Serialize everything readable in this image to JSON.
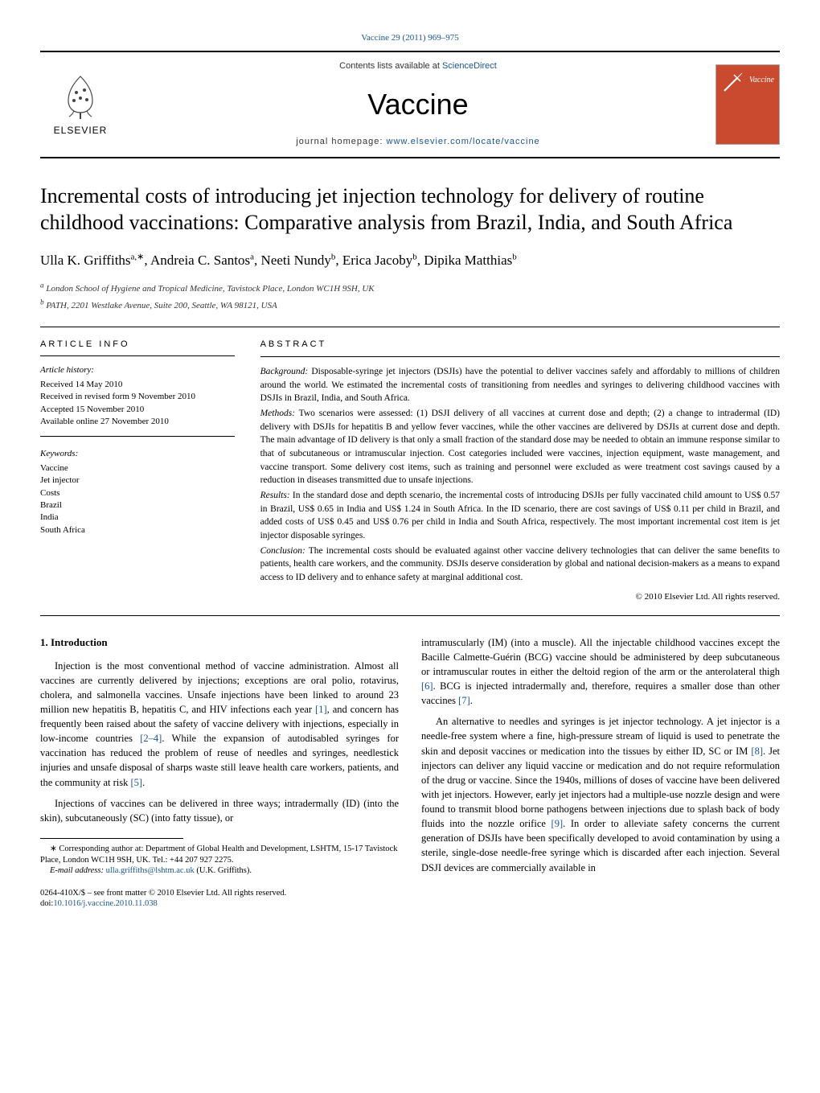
{
  "running_header": {
    "journal_link_text": "Vaccine 29 (2011) 969–975"
  },
  "masthead": {
    "elsevier_label": "ELSEVIER",
    "contents_prefix": "Contents lists available at ",
    "contents_link": "ScienceDirect",
    "journal_title": "Vaccine",
    "homepage_prefix": "journal homepage: ",
    "homepage_link": "www.elsevier.com/locate/vaccine",
    "cover_title": "Vaccine"
  },
  "article": {
    "title_line1": "Incremental costs of introducing jet injection technology for delivery of routine",
    "title_line2": "childhood vaccinations: Comparative analysis from Brazil, India, and South Africa",
    "authors_html": "Ulla K. Griffiths",
    "author_sup1": "a,∗",
    "author2": ", Andreia C. Santos",
    "author2_sup": "a",
    "author3": ", Neeti Nundy",
    "author3_sup": "b",
    "author4": ", Erica Jacoby",
    "author4_sup": "b",
    "author5": ", Dipika Matthias",
    "author5_sup": "b",
    "affiliations": [
      "a London School of Hygiene and Tropical Medicine, Tavistock Place, London WC1H 9SH, UK",
      "b PATH, 2201 Westlake Avenue, Suite 200, Seattle, WA 98121, USA"
    ]
  },
  "info": {
    "heading": "ARTICLE INFO",
    "history_title": "Article history:",
    "history": [
      "Received 14 May 2010",
      "Received in revised form 9 November 2010",
      "Accepted 15 November 2010",
      "Available online 27 November 2010"
    ],
    "keywords_title": "Keywords:",
    "keywords": [
      "Vaccine",
      "Jet injector",
      "Costs",
      "Brazil",
      "India",
      "South Africa"
    ]
  },
  "abstract": {
    "heading": "ABSTRACT",
    "background_label": "Background:",
    "background": " Disposable-syringe jet injectors (DSJIs) have the potential to deliver vaccines safely and affordably to millions of children around the world. We estimated the incremental costs of transitioning from needles and syringes to delivering childhood vaccines with DSJIs in Brazil, India, and South Africa.",
    "methods_label": "Methods:",
    "methods": " Two scenarios were assessed: (1) DSJI delivery of all vaccines at current dose and depth; (2) a change to intradermal (ID) delivery with DSJIs for hepatitis B and yellow fever vaccines, while the other vaccines are delivered by DSJIs at current dose and depth. The main advantage of ID delivery is that only a small fraction of the standard dose may be needed to obtain an immune response similar to that of subcutaneous or intramuscular injection. Cost categories included were vaccines, injection equipment, waste management, and vaccine transport. Some delivery cost items, such as training and personnel were excluded as were treatment cost savings caused by a reduction in diseases transmitted due to unsafe injections.",
    "results_label": "Results:",
    "results": " In the standard dose and depth scenario, the incremental costs of introducing DSJIs per fully vaccinated child amount to US$ 0.57 in Brazil, US$ 0.65 in India and US$ 1.24 in South Africa. In the ID scenario, there are cost savings of US$ 0.11 per child in Brazil, and added costs of US$ 0.45 and US$ 0.76 per child in India and South Africa, respectively. The most important incremental cost item is jet injector disposable syringes.",
    "conclusion_label": "Conclusion:",
    "conclusion": " The incremental costs should be evaluated against other vaccine delivery technologies that can deliver the same benefits to patients, health care workers, and the community. DSJIs deserve consideration by global and national decision-makers as a means to expand access to ID delivery and to enhance safety at marginal additional cost.",
    "copyright": "© 2010 Elsevier Ltd. All rights reserved."
  },
  "body": {
    "section1_heading": "1.  Introduction",
    "p1a": "Injection is the most conventional method of vaccine administration. Almost all vaccines are currently delivered by injections; exceptions are oral polio, rotavirus, cholera, and salmonella vaccines. Unsafe injections have been linked to around 23 million new hepatitis B, hepatitis C, and HIV infections each year ",
    "ref1": "[1]",
    "p1b": ", and concern has frequently been raised about the safety of vaccine delivery with injections, especially in low-income countries ",
    "ref24": "[2–4]",
    "p1c": ". While the expansion of autodisabled syringes for vaccination has reduced the problem of reuse of needles and syringes, needlestick injuries and unsafe disposal of sharps waste still leave health care workers, patients, and the community at risk ",
    "ref5": "[5]",
    "p1d": ".",
    "p2": "Injections of vaccines can be delivered in three ways; intradermally (ID) (into the skin), subcutaneously (SC) (into fatty tissue), or",
    "p3a": "intramuscularly (IM) (into a muscle). All the injectable childhood vaccines except the Bacille Calmette-Guérin (BCG) vaccine should be administered by deep subcutaneous or intramuscular routes in either the deltoid region of the arm or the anterolateral thigh ",
    "ref6": "[6]",
    "p3b": ". BCG is injected intradermally and, therefore, requires a smaller dose than other vaccines ",
    "ref7": "[7]",
    "p3c": ".",
    "p4a": "An alternative to needles and syringes is jet injector technology. A jet injector is a needle-free system where a fine, high-pressure stream of liquid is used to penetrate the skin and deposit vaccines or medication into the tissues by either ID, SC or IM ",
    "ref8": "[8]",
    "p4b": ". Jet injectors can deliver any liquid vaccine or medication and do not require reformulation of the drug or vaccine. Since the 1940s, millions of doses of vaccine have been delivered with jet injectors. However, early jet injectors had a multiple-use nozzle design and were found to transmit blood borne pathogens between injections due to splash back of body fluids into the nozzle orifice ",
    "ref9": "[9]",
    "p4c": ". In order to alleviate safety concerns the current generation of DSJIs have been specifically developed to avoid contamination by using a sterile, single-dose needle-free syringe which is discarded after each injection. Several DSJI devices are commercially available in"
  },
  "footnote": {
    "corresponding": "∗ Corresponding author at: Department of Global Health and Development, LSHTM, 15-17 Tavistock Place, London WC1H 9SH, UK. Tel.: +44 207 927 2275.",
    "email_label": "E-mail address: ",
    "email": "ulla.griffiths@lshtm.ac.uk",
    "email_suffix": " (U.K. Griffiths)."
  },
  "bottom": {
    "issn": "0264-410X/$ – see front matter © 2010 Elsevier Ltd. All rights reserved.",
    "doi_prefix": "doi:",
    "doi": "10.1016/j.vaccine.2010.11.038"
  },
  "colors": {
    "link": "#1a5490",
    "cover_bg": "#c94a2f",
    "text": "#000000",
    "bg": "#ffffff"
  }
}
